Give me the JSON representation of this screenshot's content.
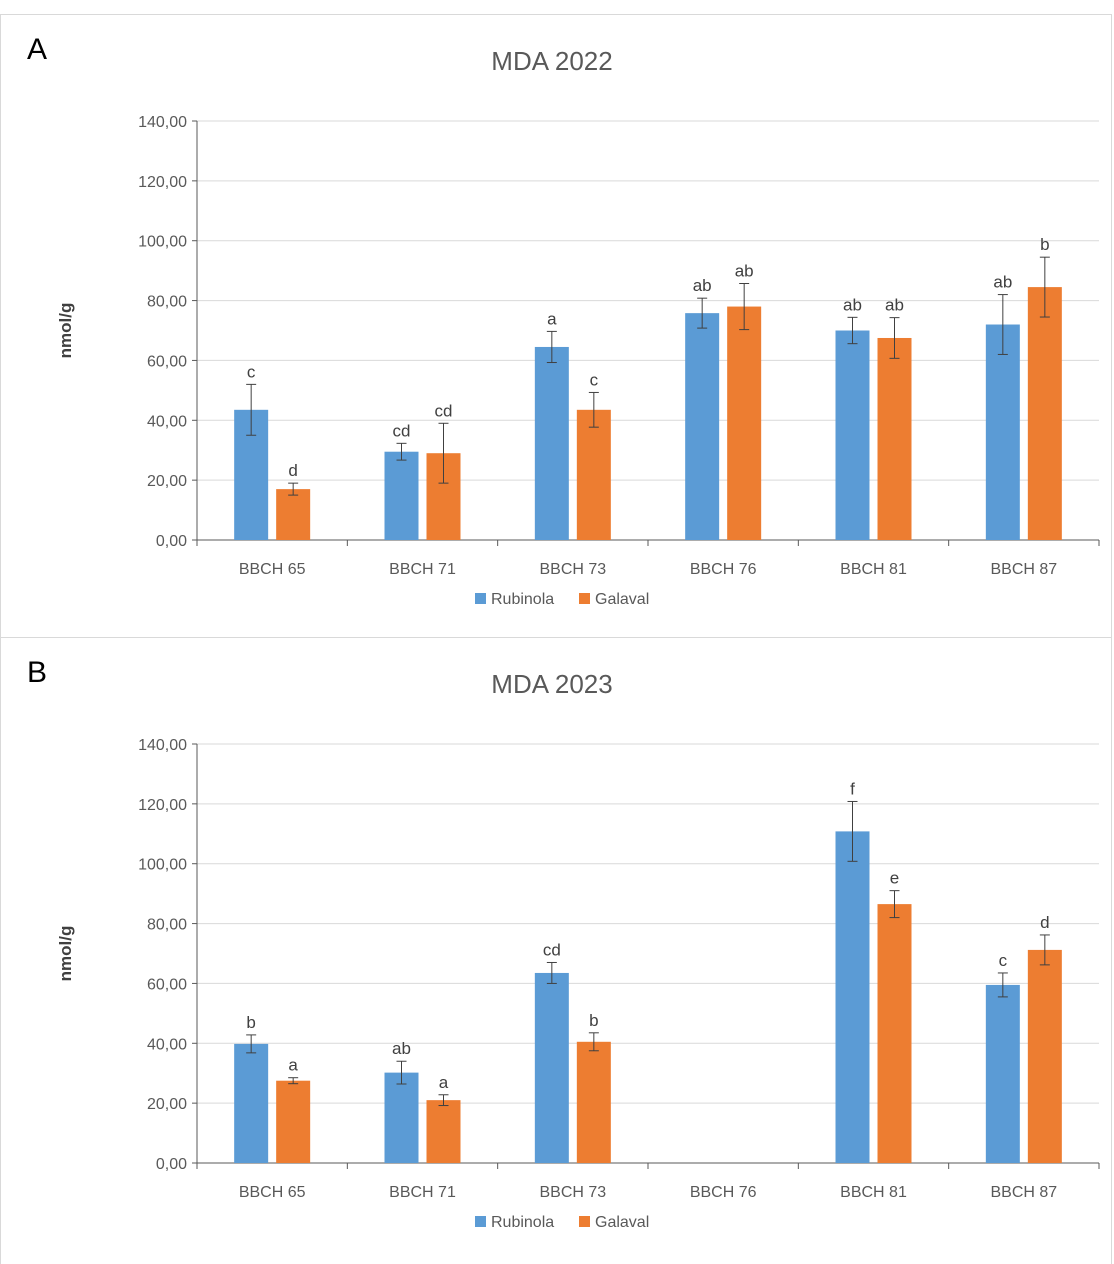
{
  "colors": {
    "rubinola": "#5b9bd5",
    "galaval": "#ed7d31",
    "grid": "#d9d9d9",
    "axis": "#595959",
    "errbar": "#404040"
  },
  "chart_data": [
    {
      "panel_label": "A",
      "type": "bar",
      "title": "MDA 2022",
      "ylabel": "nmol/g",
      "xlabel": "",
      "ylim": [
        0,
        140
      ],
      "yticks": [
        0,
        20,
        40,
        60,
        80,
        100,
        120,
        140
      ],
      "ytick_labels": [
        "0,00",
        "20,00",
        "40,00",
        "60,00",
        "80,00",
        "100,00",
        "120,00",
        "140,00"
      ],
      "grid": true,
      "legend": "bottom-center",
      "categories": [
        "BBCH 65",
        "BBCH 71",
        "BBCH 73",
        "BBCH 76",
        "BBCH 81",
        "BBCH 87"
      ],
      "series": [
        {
          "name": "Rubinola",
          "values": [
            43.5,
            29.5,
            64.5,
            75.8,
            70.0,
            72.0
          ],
          "errors": [
            8.5,
            2.8,
            5.2,
            5.0,
            4.4,
            10.0
          ],
          "labels": [
            "c",
            "cd",
            "a",
            "ab",
            "ab",
            "ab"
          ]
        },
        {
          "name": "Galaval",
          "values": [
            17.0,
            29.0,
            43.5,
            78.0,
            67.5,
            84.5
          ],
          "errors": [
            2.0,
            10.0,
            5.8,
            7.7,
            6.8,
            10.0
          ],
          "labels": [
            "d",
            "cd",
            "c",
            "ab",
            "ab",
            "b"
          ]
        }
      ]
    },
    {
      "panel_label": "B",
      "type": "bar",
      "title": "MDA 2023",
      "ylabel": "nmol/g",
      "xlabel": "",
      "ylim": [
        0,
        140
      ],
      "yticks": [
        0,
        20,
        40,
        60,
        80,
        100,
        120,
        140
      ],
      "ytick_labels": [
        "0,00",
        "20,00",
        "40,00",
        "60,00",
        "80,00",
        "100,00",
        "120,00",
        "140,00"
      ],
      "grid": true,
      "legend": "bottom-center",
      "categories": [
        "BBCH 65",
        "BBCH 71",
        "BBCH 73",
        "BBCH 76",
        "BBCH 81",
        "BBCH 87"
      ],
      "series": [
        {
          "name": "Rubinola",
          "values": [
            39.8,
            30.2,
            63.5,
            null,
            110.8,
            59.5
          ],
          "errors": [
            3.0,
            3.8,
            3.5,
            null,
            10.0,
            4.0
          ],
          "labels": [
            "b",
            "ab",
            "cd",
            "",
            "f",
            "c"
          ]
        },
        {
          "name": "Galaval",
          "values": [
            27.5,
            21.0,
            40.5,
            null,
            86.5,
            71.2
          ],
          "errors": [
            1.0,
            1.8,
            3.0,
            null,
            4.5,
            5.0
          ],
          "labels": [
            "a",
            "a",
            "b",
            "",
            "e",
            "d"
          ]
        }
      ]
    }
  ]
}
